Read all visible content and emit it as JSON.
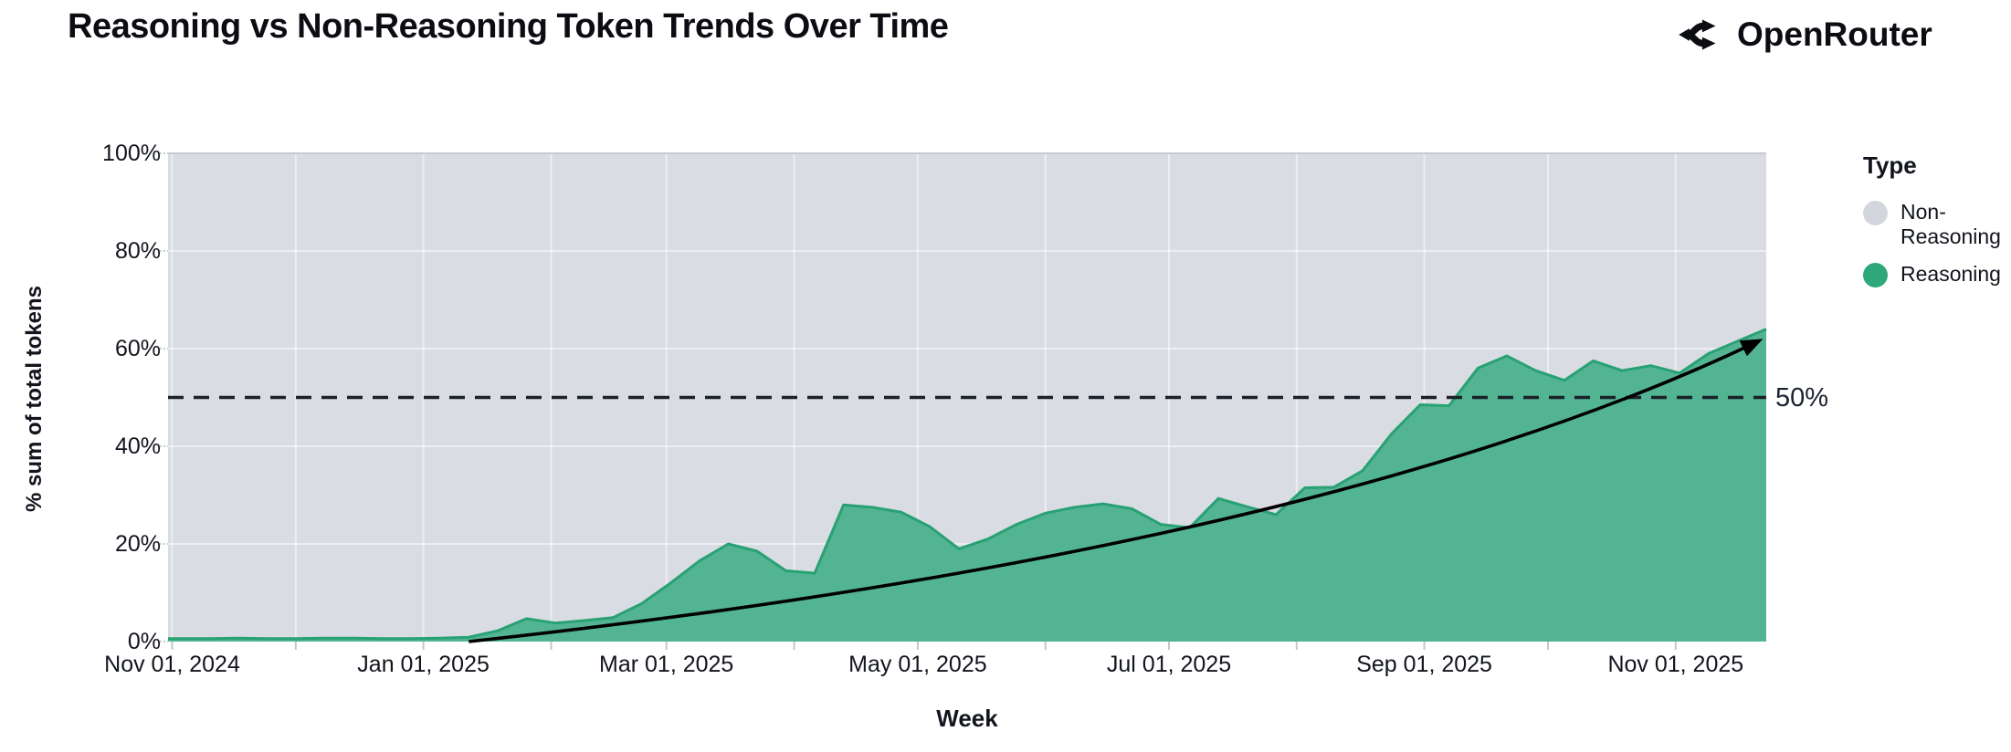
{
  "header": {
    "title": "Reasoning vs Non-Reasoning Token Trends Over Time",
    "brand": "OpenRouter"
  },
  "legend": {
    "title": "Type",
    "items": [
      {
        "label": "Non-Reasoning",
        "color": "#d3d6dd"
      },
      {
        "label": "Reasoning",
        "color": "#2ea87a"
      }
    ]
  },
  "chart_data": {
    "type": "area",
    "title": "Reasoning vs Non-Reasoning Token Trends Over Time",
    "xlabel": "Week",
    "ylabel": "% sum of total tokens",
    "ylim": [
      0,
      100
    ],
    "x_range": [
      "2024-10-31",
      "2025-11-23"
    ],
    "grid": "on",
    "legend_position": "right",
    "colors": {
      "reasoning_fill": "#53b493",
      "reasoning_stroke": "#28a173",
      "non_reasoning_fill": "#d9dce3",
      "gridline": "rgba(255,255,255,0.5)",
      "axis_text": "#12151d",
      "ref_line": "#1b2029",
      "trend_line": "#000000"
    },
    "y_ticks": [
      {
        "label": "0%",
        "value": 0
      },
      {
        "label": "20%",
        "value": 20
      },
      {
        "label": "40%",
        "value": 40
      },
      {
        "label": "60%",
        "value": 60
      },
      {
        "label": "80%",
        "value": 80
      },
      {
        "label": "100%",
        "value": 100
      }
    ],
    "x_ticks": [
      {
        "label": "Nov 01, 2024",
        "date": "2024-11-01"
      },
      {
        "label": "Jan 01, 2025",
        "date": "2025-01-01"
      },
      {
        "label": "Mar 01, 2025",
        "date": "2025-03-01"
      },
      {
        "label": "May 01, 2025",
        "date": "2025-05-01"
      },
      {
        "label": "Jul 01, 2025",
        "date": "2025-07-01"
      },
      {
        "label": "Sep 01, 2025",
        "date": "2025-09-01"
      },
      {
        "label": "Nov 01, 2025",
        "date": "2025-11-01"
      }
    ],
    "series": [
      {
        "name": "Reasoning",
        "unit": "% of total tokens",
        "points": [
          [
            "2024-11-03",
            0.6
          ],
          [
            "2024-11-10",
            0.6
          ],
          [
            "2024-11-17",
            0.7
          ],
          [
            "2024-11-24",
            0.6
          ],
          [
            "2024-12-01",
            0.6
          ],
          [
            "2024-12-08",
            0.7
          ],
          [
            "2024-12-15",
            0.7
          ],
          [
            "2024-12-22",
            0.6
          ],
          [
            "2024-12-29",
            0.6
          ],
          [
            "2025-01-05",
            0.7
          ],
          [
            "2025-01-12",
            0.9
          ],
          [
            "2025-01-19",
            2.2
          ],
          [
            "2025-01-26",
            4.7
          ],
          [
            "2025-02-02",
            3.8
          ],
          [
            "2025-02-09",
            4.3
          ],
          [
            "2025-02-16",
            4.9
          ],
          [
            "2025-02-23",
            7.8
          ],
          [
            "2025-03-02",
            12
          ],
          [
            "2025-03-09",
            16.5
          ],
          [
            "2025-03-16",
            20
          ],
          [
            "2025-03-23",
            18.5
          ],
          [
            "2025-03-30",
            14.5
          ],
          [
            "2025-04-06",
            14
          ],
          [
            "2025-04-13",
            28
          ],
          [
            "2025-04-20",
            27.5
          ],
          [
            "2025-04-27",
            26.5
          ],
          [
            "2025-05-04",
            23.5
          ],
          [
            "2025-05-11",
            19
          ],
          [
            "2025-05-18",
            21
          ],
          [
            "2025-05-25",
            24
          ],
          [
            "2025-06-01",
            26.3
          ],
          [
            "2025-06-08",
            27.5
          ],
          [
            "2025-06-15",
            28.2
          ],
          [
            "2025-06-22",
            27.2
          ],
          [
            "2025-06-29",
            24
          ],
          [
            "2025-07-06",
            23.3
          ],
          [
            "2025-07-13",
            29.3
          ],
          [
            "2025-07-20",
            27.6
          ],
          [
            "2025-07-27",
            26
          ],
          [
            "2025-08-03",
            31.5
          ],
          [
            "2025-08-10",
            31.6
          ],
          [
            "2025-08-17",
            35
          ],
          [
            "2025-08-24",
            42.5
          ],
          [
            "2025-08-31",
            48.5
          ],
          [
            "2025-09-07",
            48.3
          ],
          [
            "2025-09-14",
            56
          ],
          [
            "2025-09-21",
            58.5
          ],
          [
            "2025-09-28",
            55.5
          ],
          [
            "2025-10-05",
            53.5
          ],
          [
            "2025-10-12",
            57.5
          ],
          [
            "2025-10-19",
            55.5
          ],
          [
            "2025-10-26",
            56.5
          ],
          [
            "2025-11-02",
            55
          ],
          [
            "2025-11-09",
            59
          ],
          [
            "2025-11-16",
            61.5
          ],
          [
            "2025-11-23",
            64
          ]
        ]
      },
      {
        "name": "Non-Reasoning",
        "note": "stacked remainder of total to 100%"
      }
    ],
    "annotations": {
      "ref_line": {
        "value": 50,
        "label": "50%",
        "style": "dashed"
      },
      "trend_arrow": {
        "start": {
          "date": "2025-01-12",
          "value": 0
        },
        "control": {
          "date": "2025-08-08",
          "value": 19
        },
        "end": {
          "date": "2025-11-21",
          "value": 61.5
        }
      }
    }
  }
}
